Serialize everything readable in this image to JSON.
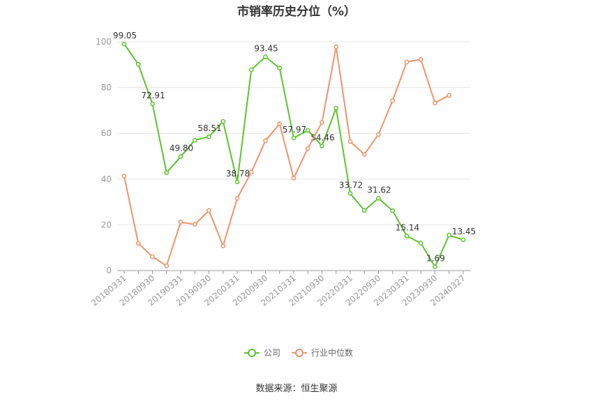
{
  "chart_data": {
    "type": "line",
    "title": "市销率历史分位（%）",
    "source": "数据来源：恒生聚源",
    "ylim": [
      0,
      100
    ],
    "yticks": [
      0,
      20,
      40,
      60,
      80,
      100
    ],
    "grid": true,
    "legend_position": "bottom",
    "x": [
      "20180331",
      "20180630",
      "20180930",
      "20181231",
      "20190331",
      "20190630",
      "20190930",
      "20191231",
      "20200331",
      "20200630",
      "20200930",
      "20201231",
      "20210331",
      "20210630",
      "20210930",
      "20211231",
      "20220331",
      "20220630",
      "20220930",
      "20221231",
      "20230331",
      "20230630",
      "20230930",
      "20231231",
      "20240327"
    ],
    "x_tick_labels": [
      "20180331",
      "20180930",
      "20190331",
      "20190930",
      "20200331",
      "20200930",
      "20210331",
      "20210930",
      "20220331",
      "20220930",
      "20230331",
      "20230930",
      "20240327"
    ],
    "series": [
      {
        "name": "公司",
        "color": "#5cc42d",
        "values": [
          99.05,
          90.2,
          72.91,
          42.8,
          49.8,
          57.0,
          58.51,
          65.2,
          38.78,
          87.8,
          93.45,
          88.5,
          57.97,
          61.3,
          54.46,
          71.0,
          33.72,
          26.3,
          31.62,
          26.2,
          15.14,
          12.0,
          1.69,
          15.5,
          13.45
        ],
        "labels": [
          "99.05",
          null,
          "72.91",
          null,
          "49.80",
          null,
          "58.51",
          null,
          "38.78",
          null,
          "93.45",
          null,
          "57.97",
          null,
          "54.46",
          null,
          "33.72",
          null,
          "31.62",
          null,
          "15.14",
          null,
          "1.69",
          null,
          "13.45"
        ]
      },
      {
        "name": "行业中位数",
        "color": "#f0936a",
        "values": [
          41.3,
          11.9,
          6.1,
          2.1,
          21.2,
          20.2,
          26.3,
          10.8,
          31.6,
          43.0,
          56.8,
          64.2,
          40.4,
          53.4,
          64.8,
          97.8,
          56.4,
          50.8,
          59.5,
          74.3,
          91.2,
          92.3,
          73.3,
          76.6,
          null
        ]
      }
    ]
  }
}
